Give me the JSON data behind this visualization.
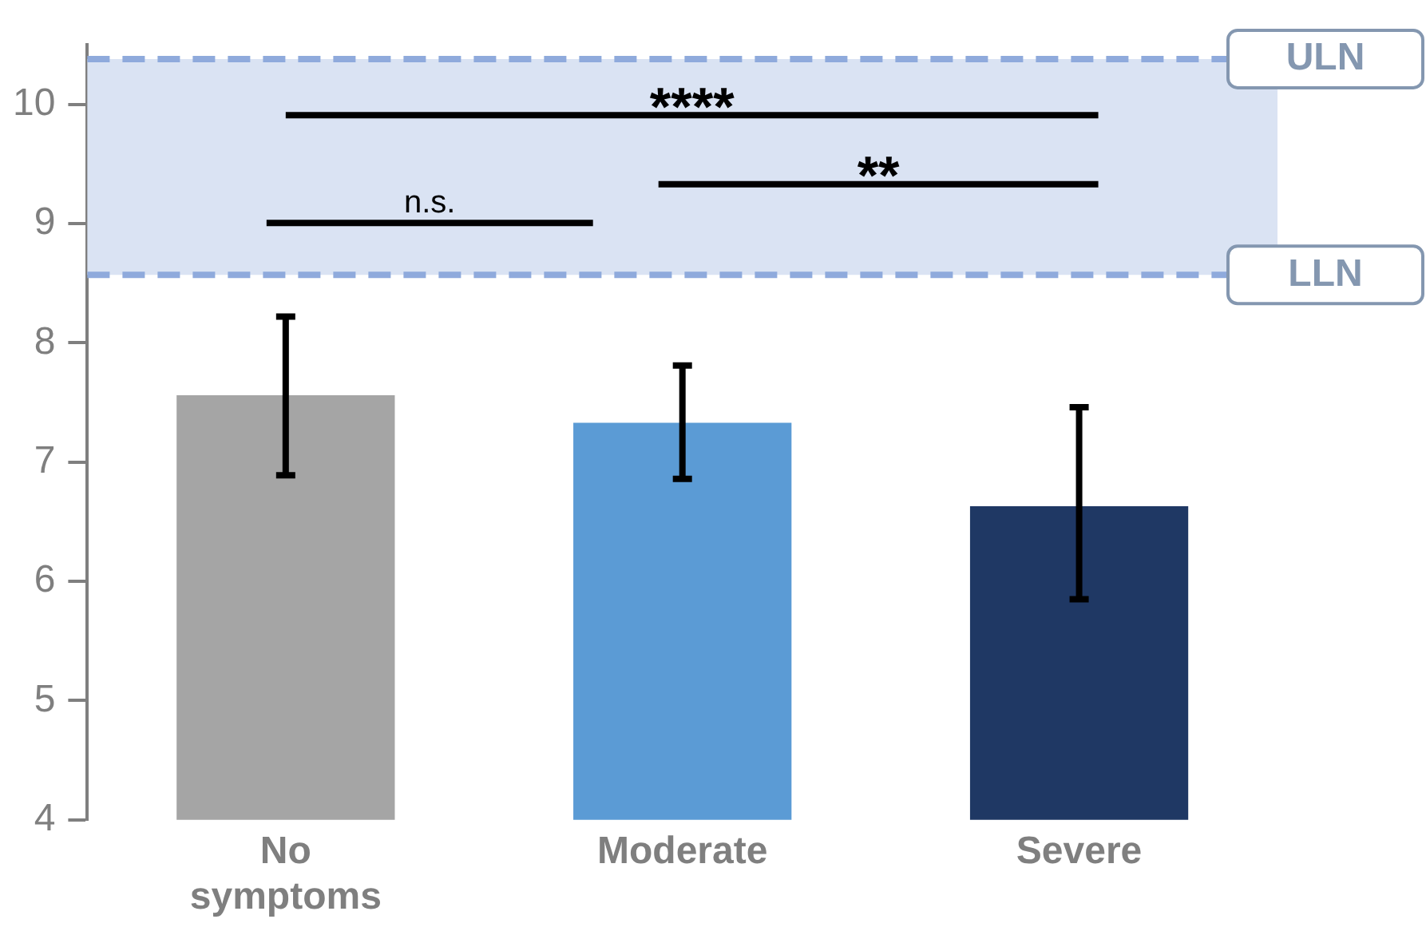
{
  "chart_data": {
    "type": "bar",
    "categories": [
      "No symptoms",
      "Moderate",
      "Severe"
    ],
    "values": [
      7.56,
      7.33,
      6.63
    ],
    "colors": [
      "#a5a5a5",
      "#5b9bd5",
      "#1f3864"
    ],
    "errors": [
      [
        6.89,
        8.22
      ],
      [
        6.86,
        7.81
      ],
      [
        5.85,
        7.46
      ]
    ],
    "ylim": [
      4,
      10.5
    ],
    "yticks": [
      4,
      5,
      6,
      7,
      8,
      9,
      10
    ],
    "grid": false,
    "legend": false,
    "bands": [
      {
        "axis": "y",
        "from": 8.57,
        "to": 10.38,
        "color": "#dae3f3"
      }
    ],
    "ref_lines": [
      {
        "axis": "y",
        "value": 10.38,
        "label": "ULN",
        "color": "#8faadc",
        "line_style": "dashed"
      },
      {
        "axis": "y",
        "value": 8.57,
        "label": "LLN",
        "color": "#8faadc",
        "line_style": "dashed"
      }
    ],
    "annotations": [
      "****",
      "**",
      "n.s."
    ]
  }
}
